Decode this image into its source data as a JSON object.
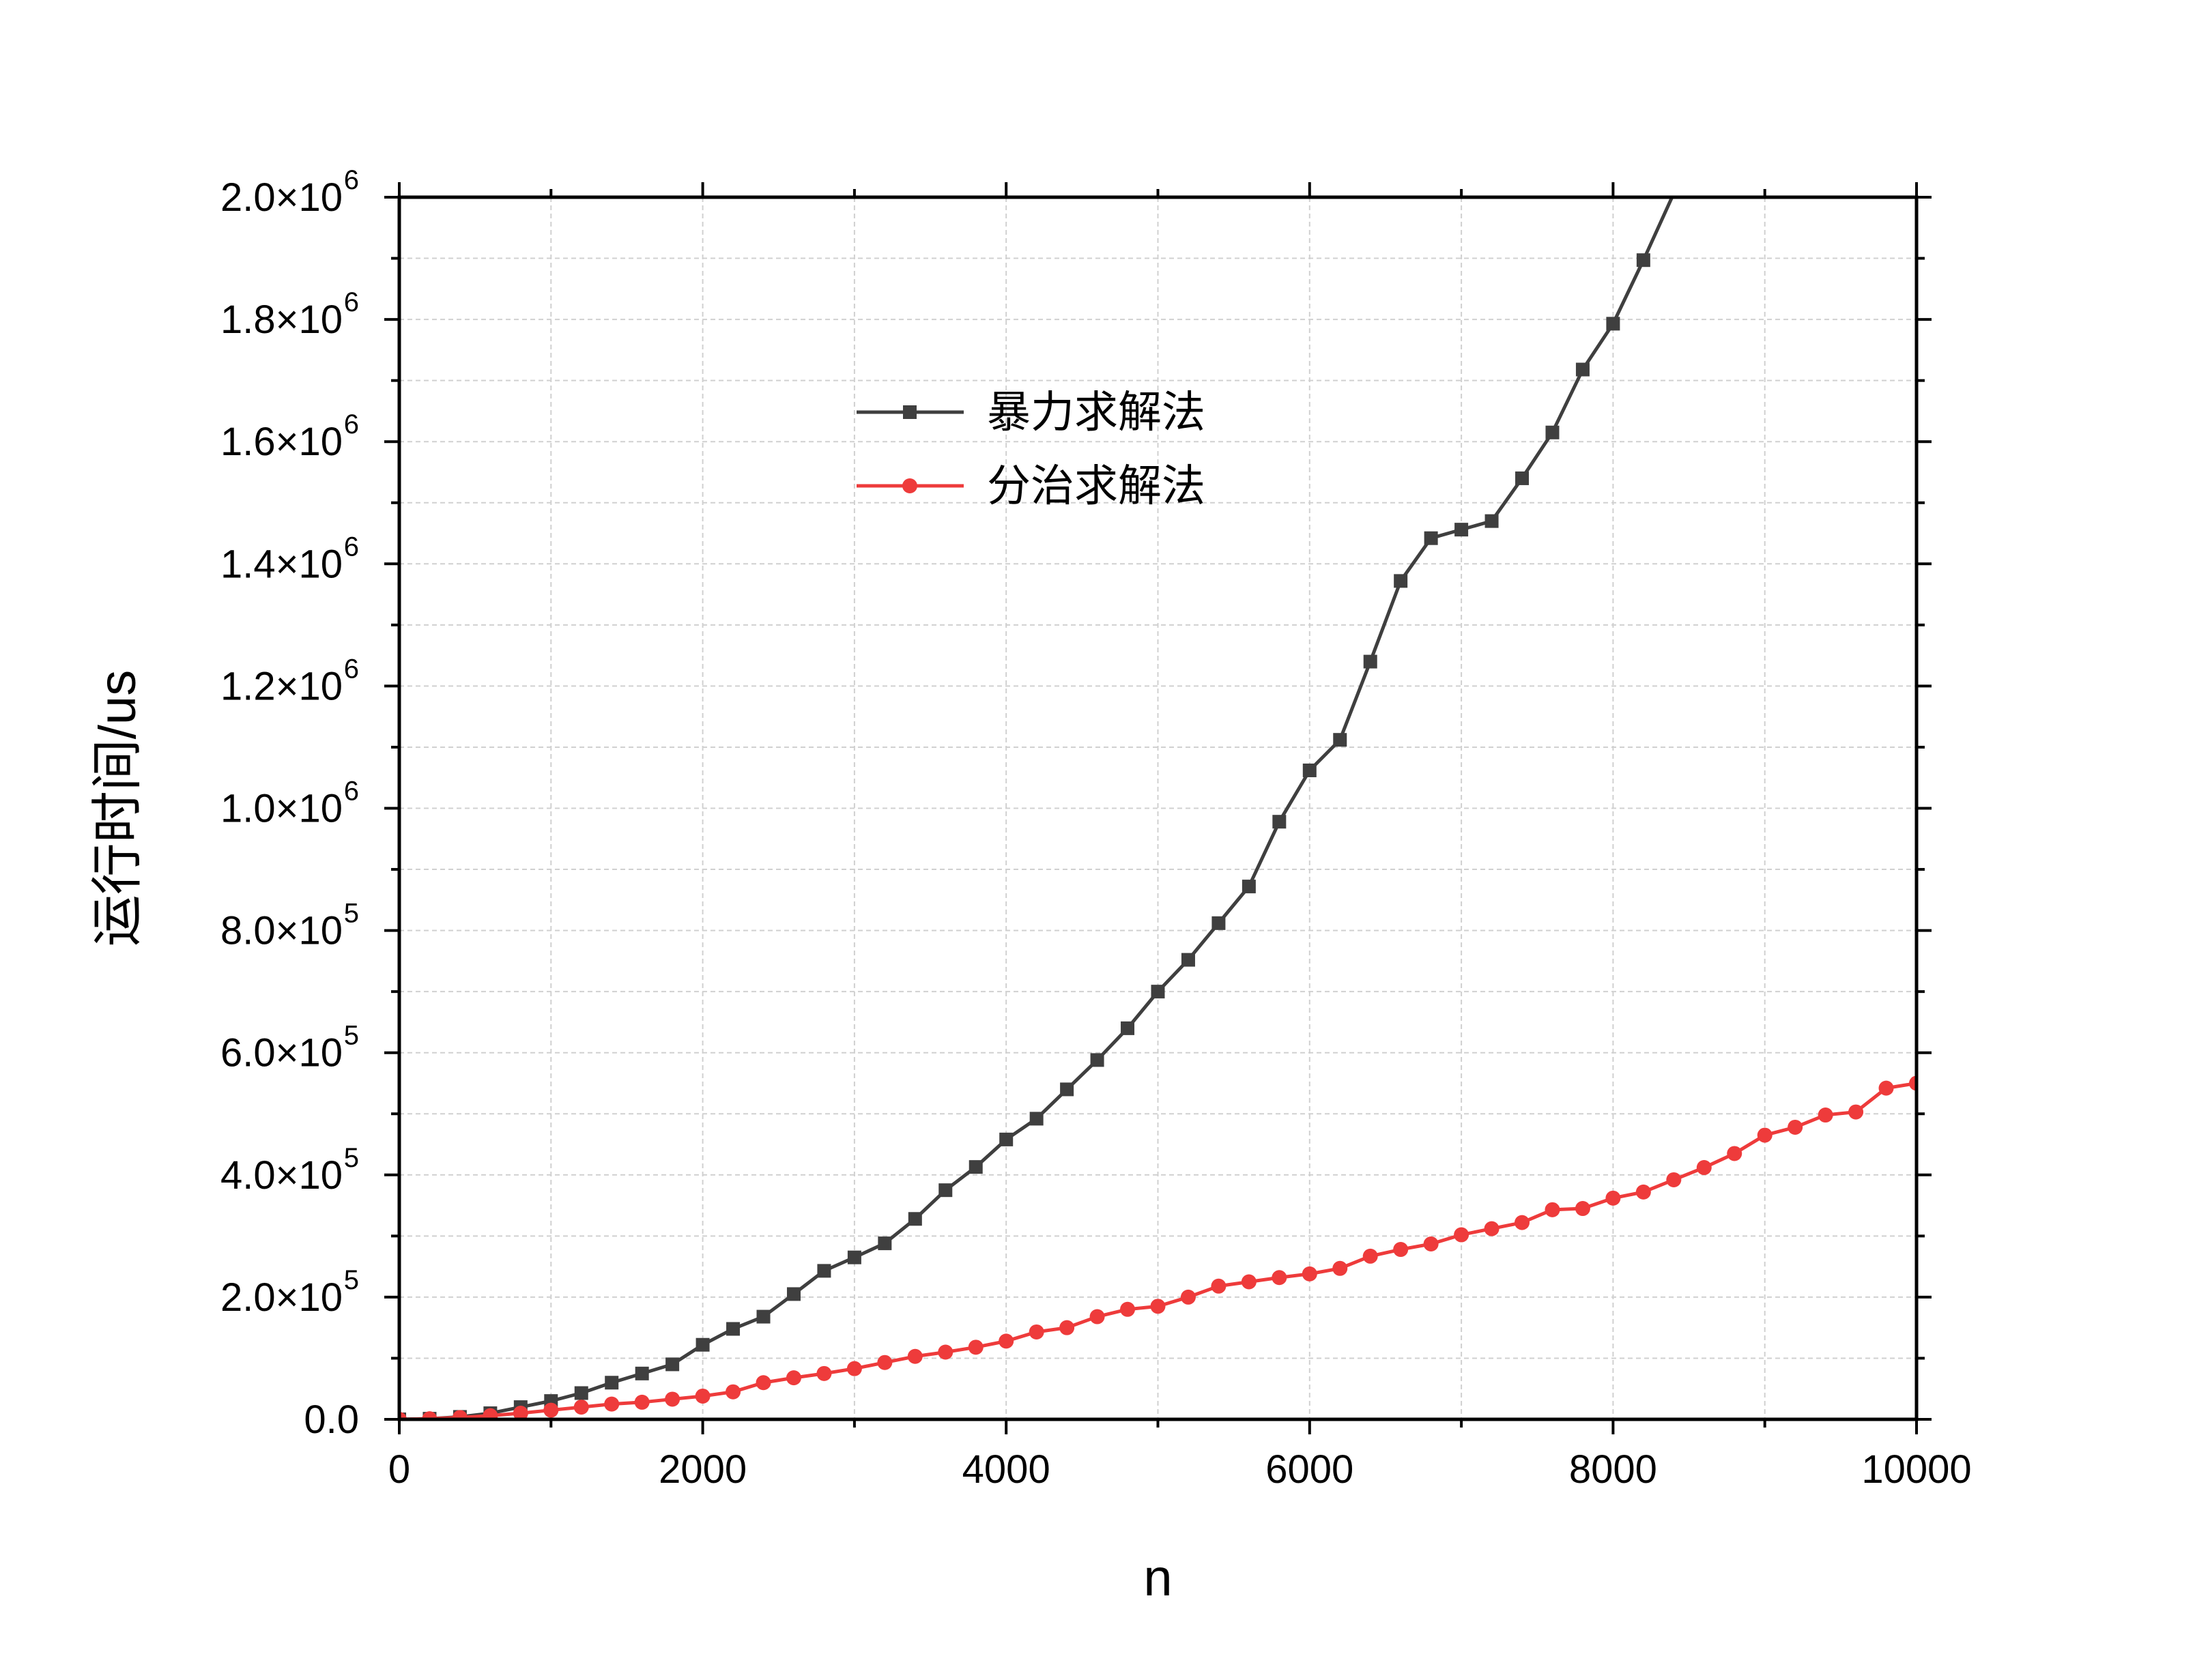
{
  "chart_data": {
    "type": "line",
    "xlabel": "n",
    "ylabel": "运行时间/us",
    "xlim": [
      0,
      10000
    ],
    "ylim": [
      0,
      2000000
    ],
    "grid": true,
    "legend_position": "upper-center",
    "x_ticks": [
      0,
      2000,
      4000,
      6000,
      8000,
      10000
    ],
    "x_tick_labels": [
      "0",
      "2000",
      "4000",
      "6000",
      "8000",
      "10000"
    ],
    "y_ticks": [
      {
        "value": 0,
        "mantissa": "0.0",
        "exp": ""
      },
      {
        "value": 200000,
        "mantissa": "2.0×10",
        "exp": "5"
      },
      {
        "value": 400000,
        "mantissa": "4.0×10",
        "exp": "5"
      },
      {
        "value": 600000,
        "mantissa": "6.0×10",
        "exp": "5"
      },
      {
        "value": 800000,
        "mantissa": "8.0×10",
        "exp": "5"
      },
      {
        "value": 1000000,
        "mantissa": "1.0×10",
        "exp": "6"
      },
      {
        "value": 1200000,
        "mantissa": "1.2×10",
        "exp": "6"
      },
      {
        "value": 1400000,
        "mantissa": "1.4×10",
        "exp": "6"
      },
      {
        "value": 1600000,
        "mantissa": "1.6×10",
        "exp": "6"
      },
      {
        "value": 1800000,
        "mantissa": "1.8×10",
        "exp": "6"
      },
      {
        "value": 2000000,
        "mantissa": "2.0×10",
        "exp": "6"
      }
    ],
    "series": [
      {
        "name": "暴力求解法",
        "color": "#3f3f3f",
        "marker": "square",
        "x": [
          0,
          200,
          400,
          600,
          800,
          1000,
          1200,
          1400,
          1600,
          1800,
          2000,
          2200,
          2400,
          2600,
          2800,
          3000,
          3200,
          3400,
          3600,
          3800,
          4000,
          4200,
          4400,
          4600,
          4800,
          5000,
          5200,
          5400,
          5600,
          5800,
          6000,
          6200,
          6400,
          6600,
          6800,
          7000,
          7200,
          7400,
          7600,
          7800,
          8000,
          8200
        ],
        "y": [
          0,
          1000,
          4000,
          10000,
          20000,
          30000,
          43000,
          60000,
          75000,
          90000,
          122000,
          148000,
          168000,
          205000,
          243000,
          265000,
          288000,
          328000,
          375000,
          413000,
          458000,
          492000,
          540000,
          588000,
          640000,
          700000,
          752000,
          812000,
          872000,
          978000,
          1062000,
          1112000,
          1240000,
          1372000,
          1442000,
          1456000,
          1470000,
          1540000,
          1615000,
          1718000,
          1793000,
          1897000
        ]
      },
      {
        "name": "分治求解法",
        "color": "#ee3b3b",
        "marker": "circle",
        "x": [
          0,
          200,
          400,
          600,
          800,
          1000,
          1200,
          1400,
          1600,
          1800,
          2000,
          2200,
          2400,
          2600,
          2800,
          3000,
          3200,
          3400,
          3600,
          3800,
          4000,
          4200,
          4400,
          4600,
          4800,
          5000,
          5200,
          5400,
          5600,
          5800,
          6000,
          6200,
          6400,
          6600,
          6800,
          7000,
          7200,
          7400,
          7600,
          7800,
          8000,
          8200,
          8400,
          8600,
          8800,
          9000,
          9200,
          9400,
          9600,
          9800,
          10000
        ],
        "y": [
          0,
          1000,
          3000,
          6000,
          10000,
          15000,
          20000,
          25000,
          28000,
          33000,
          38000,
          45000,
          60000,
          68000,
          75000,
          83000,
          93000,
          103000,
          110000,
          118000,
          128000,
          143000,
          150000,
          168000,
          180000,
          185000,
          200000,
          218000,
          225000,
          232000,
          238000,
          247000,
          267000,
          278000,
          287000,
          302000,
          312000,
          322000,
          343000,
          345000,
          362000,
          372000,
          392000,
          412000,
          435000,
          465000,
          478000,
          498000,
          503000,
          542000,
          550000
        ]
      }
    ]
  }
}
